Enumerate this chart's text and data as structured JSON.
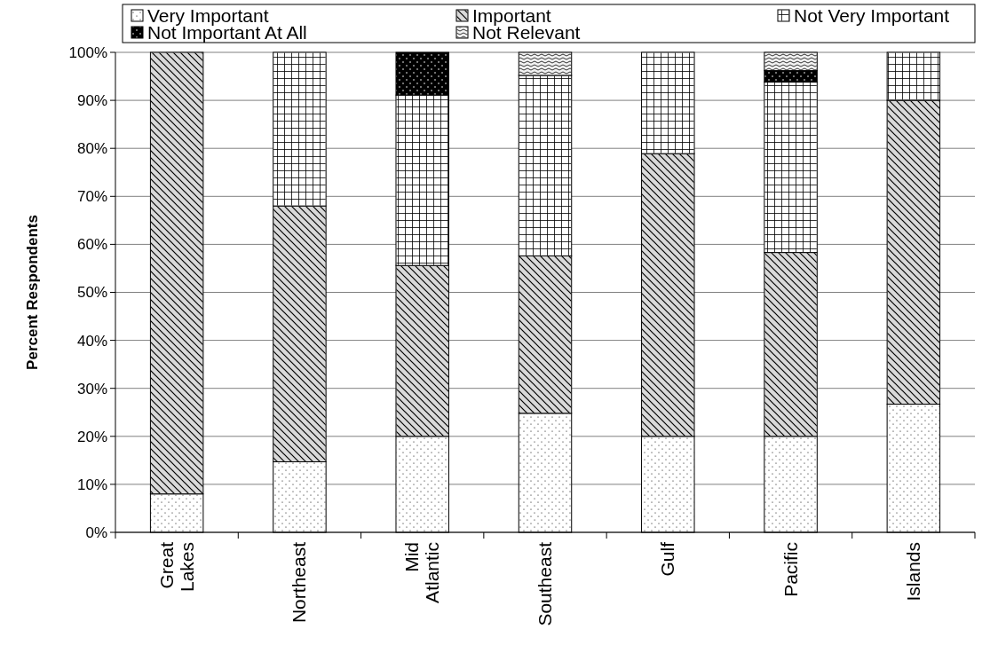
{
  "chart_data": {
    "type": "bar",
    "stacked": true,
    "ylabel": "Percent Respondents",
    "categories": [
      "Great Lakes",
      "Northeast",
      "Mid Atlantic",
      "Southeast",
      "Gulf",
      "Pacific",
      "Islands"
    ],
    "series": [
      {
        "name": "Very Important",
        "color": "#ffffff",
        "values": [
          8,
          14.7,
          20,
          24.8,
          20,
          20,
          26.7
        ]
      },
      {
        "name": "Important",
        "color": "#d9d9d9",
        "values": [
          92,
          53.3,
          35.6,
          32.8,
          58.9,
          38.3,
          63.3
        ]
      },
      {
        "name": "Not Very Important",
        "color": "#ffffff",
        "values": [
          0,
          32,
          35.5,
          37.6,
          21.1,
          35.5,
          10
        ]
      },
      {
        "name": "Not Important At All",
        "color": "#000000",
        "values": [
          0,
          0,
          8.9,
          0,
          0,
          2.4,
          0
        ]
      },
      {
        "name": "Not Relevant",
        "color": "#f2f2f2",
        "values": [
          0,
          0,
          0,
          4.8,
          0,
          3.8,
          0
        ]
      }
    ],
    "ylim": [
      0,
      100
    ],
    "yticks": [
      {
        "value": 0,
        "label": "0%"
      },
      {
        "value": 10,
        "label": "10%"
      },
      {
        "value": 20,
        "label": "20%"
      },
      {
        "value": 30,
        "label": "30%"
      },
      {
        "value": 40,
        "label": "40%"
      },
      {
        "value": 50,
        "label": "50%"
      },
      {
        "value": 60,
        "label": "60%"
      },
      {
        "value": 70,
        "label": "70%"
      },
      {
        "value": 80,
        "label": "80%"
      },
      {
        "value": 90,
        "label": "90%"
      },
      {
        "value": 100,
        "label": "100%"
      }
    ],
    "grid": "y",
    "legend": "top"
  }
}
